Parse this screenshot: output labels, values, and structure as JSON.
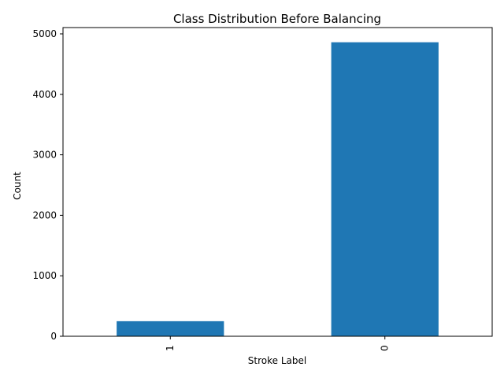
{
  "chart_data": {
    "type": "bar",
    "title": "Class Distribution Before Balancing",
    "xlabel": "Stroke Label",
    "ylabel": "Count",
    "categories": [
      "1",
      "0"
    ],
    "values": [
      249,
      4861
    ],
    "ylim": [
      0,
      5104
    ],
    "yticks": [
      0,
      1000,
      2000,
      3000,
      4000,
      5000
    ],
    "x_tick_rotation": 90,
    "grid": false,
    "bar_color": "#1f77b4"
  }
}
